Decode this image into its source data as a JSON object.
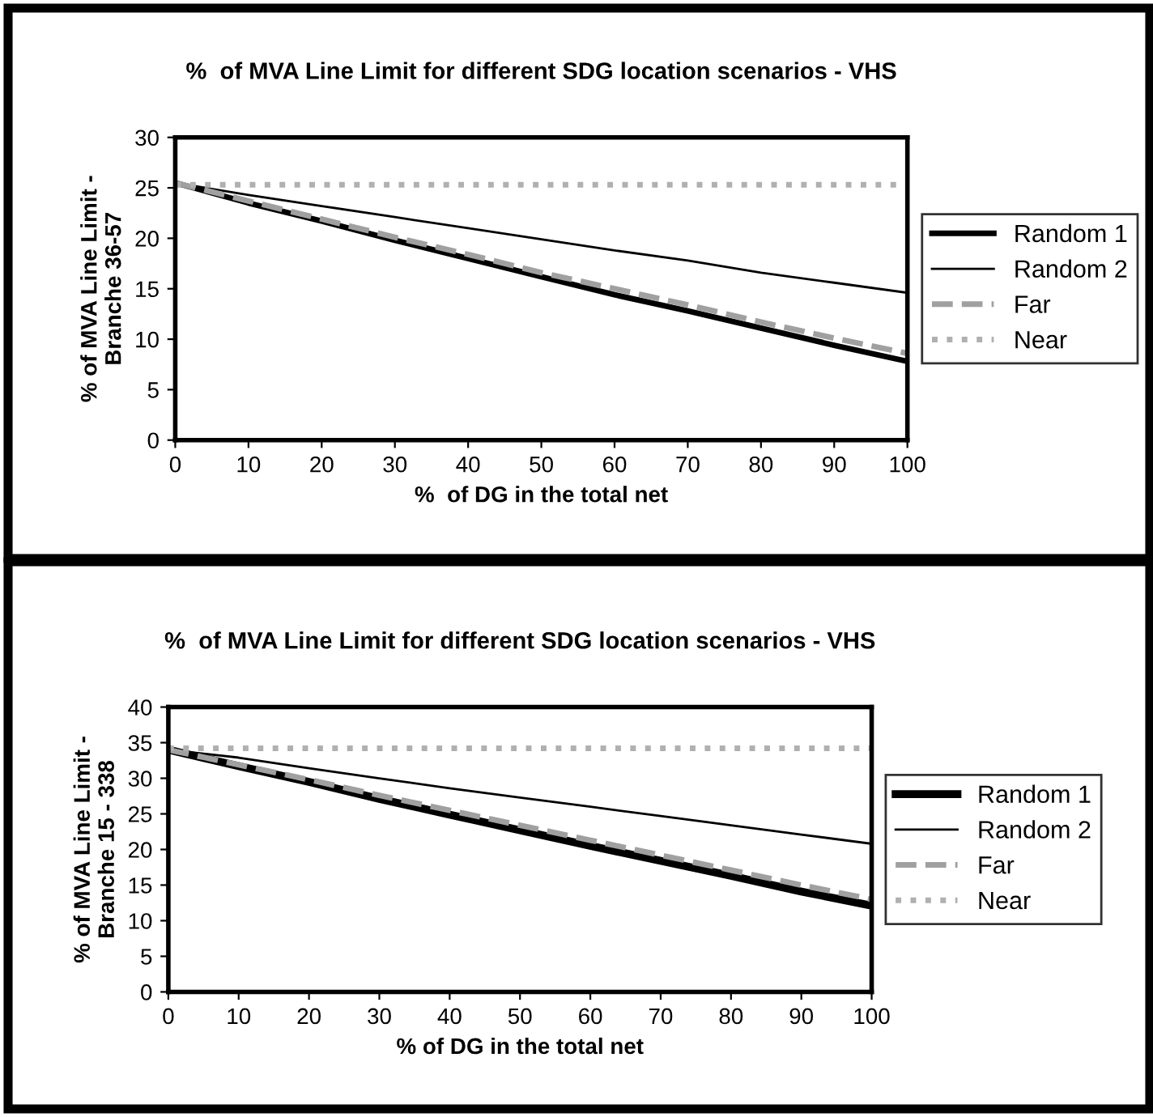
{
  "chart_data": [
    {
      "type": "line",
      "title": "%  of MVA Line Limit for different SDG location scenarios - VHS",
      "xlabel": "%  of DG in the total net",
      "ylabel": "% of MVA Line Limit -\nBranche 36-57",
      "x": [
        0,
        10,
        20,
        30,
        40,
        50,
        60,
        70,
        80,
        90,
        100
      ],
      "series": [
        {
          "name": "Random 1",
          "color": "#000000",
          "line_style": "solid",
          "values": [
            25.5,
            23.5,
            21.7,
            19.8,
            18.0,
            16.2,
            14.4,
            12.8,
            11.1,
            9.4,
            7.8
          ]
        },
        {
          "name": "Random 2",
          "color": "#000000",
          "line_style": "solid",
          "values": [
            25.5,
            24.3,
            23.2,
            22.1,
            21.0,
            19.9,
            18.8,
            17.8,
            16.6,
            15.6,
            14.6
          ]
        },
        {
          "name": "Far",
          "color": "#a0a0a0",
          "line_style": "dashed",
          "values": [
            25.5,
            23.7,
            21.9,
            20.1,
            18.4,
            16.6,
            15.0,
            13.4,
            11.7,
            10.1,
            8.6
          ]
        },
        {
          "name": "Near",
          "color": "#b0b0b0",
          "line_style": "dotted",
          "values": [
            25.3,
            25.3,
            25.3,
            25.3,
            25.3,
            25.3,
            25.3,
            25.3,
            25.3,
            25.3,
            25.3
          ]
        }
      ],
      "xlim": [
        0,
        100
      ],
      "xticks": [
        0,
        10,
        20,
        30,
        40,
        50,
        60,
        70,
        80,
        90,
        100
      ],
      "ylim": [
        0,
        30
      ],
      "yticks": [
        0,
        5,
        10,
        15,
        20,
        25,
        30
      ],
      "grid": false,
      "legend": "right",
      "marker": "none"
    },
    {
      "type": "line",
      "title": "%  of MVA Line Limit for different SDG location scenarios - VHS",
      "xlabel": "% of DG in the total net",
      "ylabel": "% of MVA Line Limit -\nBranche 15 - 338",
      "x": [
        0,
        10,
        20,
        30,
        40,
        50,
        60,
        70,
        80,
        90,
        100
      ],
      "series": [
        {
          "name": "Random 1",
          "color": "#000000",
          "line_style": "solid",
          "values": [
            34.0,
            31.7,
            29.5,
            27.1,
            24.9,
            22.7,
            20.5,
            18.4,
            16.3,
            14.1,
            12.1
          ]
        },
        {
          "name": "Random 2",
          "color": "#000000",
          "line_style": "solid",
          "values": [
            34.0,
            32.9,
            31.4,
            30.0,
            28.6,
            27.3,
            26.0,
            24.7,
            23.4,
            22.1,
            20.8
          ]
        },
        {
          "name": "Far",
          "color": "#a0a0a0",
          "line_style": "dashed",
          "values": [
            34.0,
            31.9,
            29.8,
            27.6,
            25.5,
            23.4,
            21.3,
            19.2,
            17.1,
            15.0,
            13.0
          ]
        },
        {
          "name": "Near",
          "color": "#b0b0b0",
          "line_style": "dotted",
          "values": [
            34.2,
            34.2,
            34.2,
            34.2,
            34.2,
            34.2,
            34.2,
            34.2,
            34.2,
            34.2,
            34.2
          ]
        }
      ],
      "xlim": [
        0,
        100
      ],
      "xticks": [
        0,
        10,
        20,
        30,
        40,
        50,
        60,
        70,
        80,
        90,
        100
      ],
      "ylim": [
        0,
        40
      ],
      "yticks": [
        0,
        5,
        10,
        15,
        20,
        25,
        30,
        35,
        40
      ],
      "grid": false,
      "legend": "right",
      "marker": "none"
    }
  ]
}
